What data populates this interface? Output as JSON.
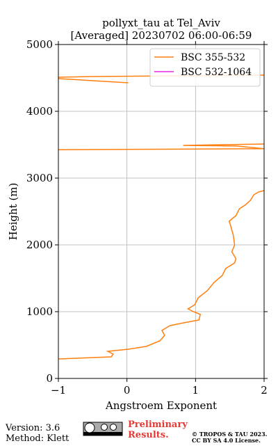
{
  "chart_data": {
    "type": "line",
    "title": "pollyxt_tau at Tel_Aviv",
    "subtitle": "[Averaged] 20230702 06:00-06:59",
    "x_label": "Angstroem Exponent",
    "y_label": "Height (m)",
    "xlim": [
      -1,
      2
    ],
    "xticks": [
      {
        "value": -1,
        "label": "−1"
      },
      0,
      1,
      2
    ],
    "ylim": [
      0,
      5000
    ],
    "yticks": [
      0,
      1000,
      2000,
      3000,
      4000,
      5000
    ],
    "grid": true,
    "legend": "upper right",
    "series": [
      {
        "name": "BSC 355-532",
        "color": "#ff7f0e",
        "x": [
          -1.0,
          -0.23,
          -0.2,
          -0.28,
          0.02,
          0.28,
          0.48,
          0.55,
          0.51,
          0.63,
          0.83,
          1.05,
          1.07,
          0.97,
          0.89,
          0.99,
          1.04,
          1.17,
          1.27,
          1.39,
          1.44,
          1.57,
          1.59,
          1.53,
          1.57,
          1.55,
          1.51,
          1.49,
          1.54,
          1.59,
          1.64,
          1.72,
          1.8,
          1.85,
          1.92,
          2.0,
          null,
          2.0,
          0.82,
          1.6,
          2.0,
          -1.0,
          null,
          0.02,
          -1.0,
          -1.0,
          -0.48,
          2.0
        ],
        "y": [
          292,
          323,
          365,
          406,
          438,
          479,
          563,
          646,
          719,
          792,
          833,
          875,
          958,
          1000,
          1042,
          1104,
          1208,
          1313,
          1438,
          1542,
          1646,
          1729,
          1792,
          1896,
          2000,
          2146,
          2292,
          2354,
          2396,
          2438,
          2542,
          2594,
          2667,
          2750,
          2792,
          2813,
          null,
          3510,
          3490,
          3480,
          3440,
          3425,
          null,
          4427,
          4490,
          4510,
          4521,
          4542
        ]
      },
      {
        "name": "BSC 532-1064",
        "color": "#e826e8",
        "x": [],
        "y": []
      }
    ]
  },
  "footer": {
    "version": "Version: 3.6",
    "method": "Method: Klett",
    "preliminary": "Preliminary Results.",
    "copyright": "© TROPOS & TAU 2023.",
    "license": "CC BY SA 4.0 License."
  }
}
